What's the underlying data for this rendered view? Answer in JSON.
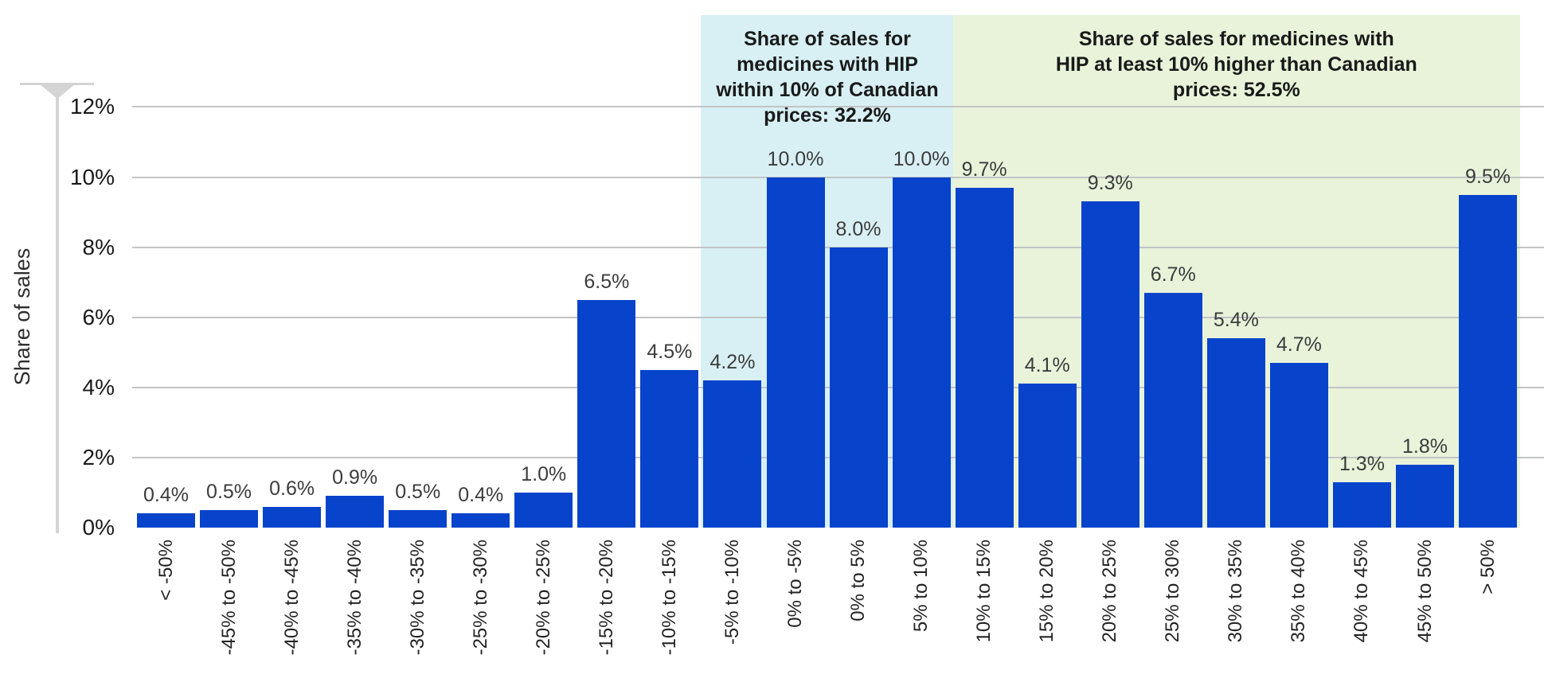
{
  "chart_data": {
    "type": "bar",
    "ylabel": "Share of sales",
    "ylim": [
      0,
      12
    ],
    "grid": true,
    "legend": false,
    "ytick_values": [
      0,
      2,
      4,
      6,
      8,
      10,
      12
    ],
    "ytick_labels": [
      "0%",
      "2%",
      "4%",
      "6%",
      "8%",
      "10%",
      "12%"
    ],
    "categories": [
      "< -50%",
      "-45% to -50%",
      "-40% to -45%",
      "-35% to -40%",
      "-30% to -35%",
      "-25% to -30%",
      "-20% to -25%",
      "-15% to -20%",
      "-10% to -15%",
      "-5% to -10%",
      "0% to -5%",
      "0% to 5%",
      "5% to 10%",
      "10% to 15%",
      "15% to 20%",
      "20% to 25%",
      "25% to 30%",
      "30% to 35%",
      "35% to 40%",
      "40% to 45%",
      "45% to 50%",
      "> 50%"
    ],
    "values": [
      0.4,
      0.5,
      0.6,
      0.9,
      0.5,
      0.4,
      1.0,
      6.5,
      4.5,
      4.2,
      10.0,
      8.0,
      10.0,
      9.7,
      4.1,
      9.3,
      6.7,
      5.4,
      4.7,
      1.3,
      1.8,
      9.5
    ],
    "bar_labels": [
      "0.4%",
      "0.5%",
      "0.6%",
      "0.9%",
      "0.5%",
      "0.4%",
      "1.0%",
      "6.5%",
      "4.5%",
      "4.2%",
      "10.0%",
      "8.0%",
      "10.0%",
      "9.7%",
      "4.1%",
      "9.3%",
      "6.7%",
      "5.4%",
      "4.7%",
      "1.3%",
      "1.8%",
      "9.5%"
    ],
    "annotations": [
      {
        "id": "within-10",
        "lines": [
          "Share of sales for",
          "medicines with HIP",
          "within 10% of Canadian",
          "prices: 32.2%"
        ],
        "total": "32.2%",
        "band_color": "#d8f0f4",
        "start_category": "-5% to -10%",
        "end_category": "5% to 10%"
      },
      {
        "id": "at-least-10-higher",
        "lines": [
          "Share of sales for medicines with",
          "HIP at least 10% higher than Canadian",
          "prices: 52.5%"
        ],
        "total": "52.5%",
        "band_color": "#e8f3da",
        "start_category": "10% to 15%",
        "end_category": "> 50%"
      }
    ],
    "colors": {
      "bar": "#0743cb",
      "gridline": "#c2c4c6",
      "axis": "#d4d4d4",
      "value_label": "#3c3c3c",
      "tick_label": "#1a1a1a",
      "annotation_text": "#1a1a1a"
    }
  }
}
